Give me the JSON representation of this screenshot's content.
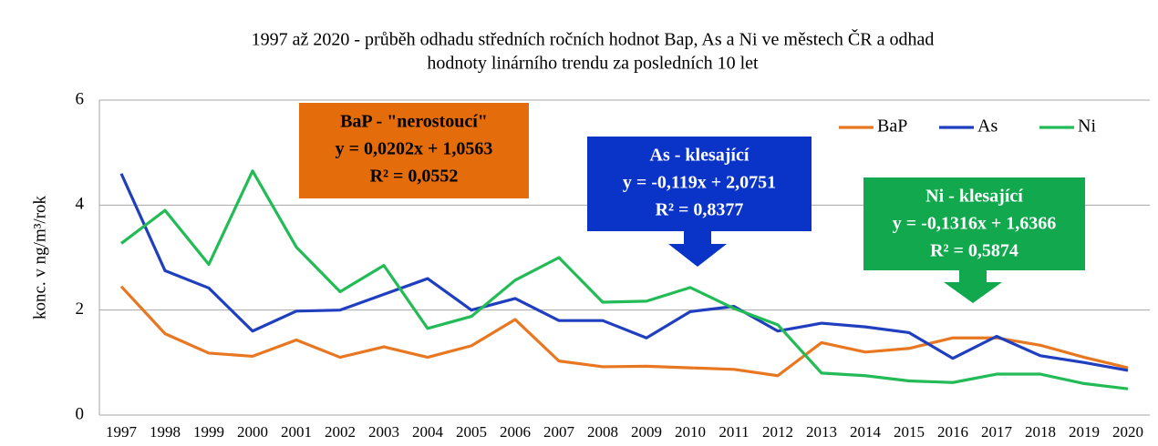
{
  "chart_data": {
    "type": "line",
    "title": [
      "1997 až 2020 - průběh odhadu středních ročních hodnot Bap, As a Ni ve městech ČR a odhad",
      "hodnoty linárního trendu za posledních 10 let"
    ],
    "ylabel": "konc. v ng/m³/rok",
    "categories": [
      "1997",
      "1998",
      "1999",
      "2000",
      "2001",
      "2002",
      "2003",
      "2004",
      "2005",
      "2006",
      "2007",
      "2008",
      "2009",
      "2010",
      "2011",
      "2012",
      "2013",
      "2014",
      "2015",
      "2016",
      "2017",
      "2018",
      "2019",
      "2020"
    ],
    "series": [
      {
        "name": "BaP",
        "color": "#e87722",
        "values": [
          2.45,
          1.55,
          1.18,
          1.12,
          1.43,
          1.1,
          1.3,
          1.1,
          1.32,
          1.82,
          1.03,
          0.92,
          0.93,
          0.9,
          0.87,
          0.75,
          1.38,
          1.2,
          1.27,
          1.47,
          1.47,
          1.33,
          1.1,
          0.9
        ]
      },
      {
        "name": "As",
        "color": "#1f3fbf",
        "values": [
          4.6,
          2.75,
          2.42,
          1.6,
          1.98,
          2.0,
          2.3,
          2.6,
          2.0,
          2.22,
          1.8,
          1.8,
          1.47,
          1.97,
          2.07,
          1.6,
          1.75,
          1.68,
          1.57,
          1.08,
          1.5,
          1.13,
          1.0,
          0.85
        ]
      },
      {
        "name": "Ni",
        "color": "#22bb55",
        "values": [
          3.27,
          3.9,
          2.87,
          4.65,
          3.2,
          2.35,
          2.85,
          1.65,
          1.88,
          2.57,
          3.0,
          2.15,
          2.17,
          2.43,
          2.03,
          1.72,
          0.8,
          0.75,
          0.65,
          0.62,
          0.78,
          0.78,
          0.6,
          0.5
        ]
      }
    ],
    "ylim": [
      0,
      6
    ],
    "yticks": [
      0,
      2,
      4,
      6
    ],
    "grid": true,
    "legend": "top right",
    "annotations": [
      {
        "color": "#e46c0a",
        "lines": [
          "BaP - \"nerostoucí\"",
          "y = 0,0202x + 1,0563",
          "R² = 0,0552"
        ]
      },
      {
        "color": "#0a34c8",
        "lines": [
          "As - klesající",
          "y = -0,119x + 2,0751",
          "R² = 0,8377"
        ]
      },
      {
        "color": "#12a84e",
        "lines": [
          "Ni - klesající",
          "y = -0,1316x + 1,6366",
          "R² = 0,5874"
        ]
      }
    ]
  }
}
